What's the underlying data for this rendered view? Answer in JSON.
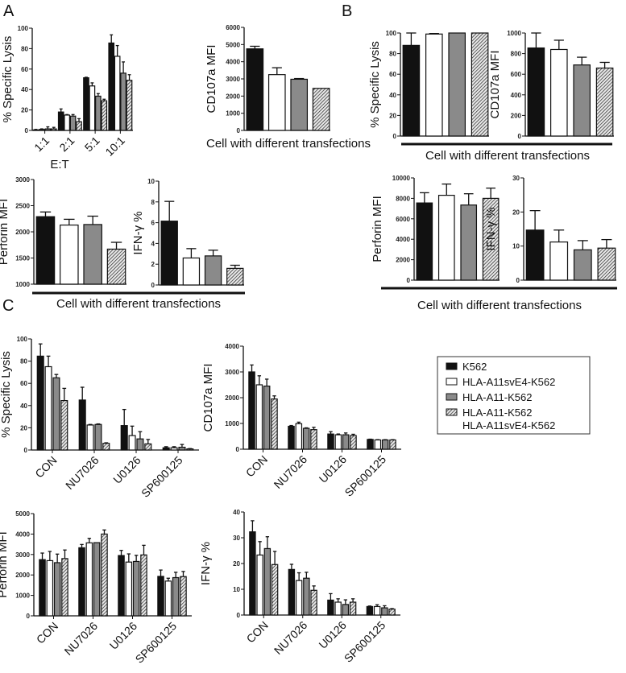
{
  "figure": {
    "panel_labels": {
      "a": "A",
      "b": "B",
      "c": "C"
    },
    "group_labels": {
      "a_top": "Cell with different transfections",
      "a_bottom": "Cell with different transfections",
      "b_top": "Cell with different transfections",
      "b_bottom": "Cell with different transfections"
    }
  },
  "legend": {
    "items": [
      {
        "line1": "K562",
        "line2": ""
      },
      {
        "line1": "HLA-A11svE4-K562",
        "line2": ""
      },
      {
        "line1": "HLA-A11-K562",
        "line2": ""
      },
      {
        "line1": "HLA-A11-K562",
        "line2": "HLA-A11svE4-K562"
      }
    ],
    "colors": [
      "#111111",
      "#ffffff",
      "#8a8a8a",
      "hatched"
    ]
  },
  "chart_data": [
    {
      "id": "A1",
      "type": "bar",
      "ylabel": "% Specific Lysis",
      "xlabel": "E:T",
      "ylim": [
        0,
        100
      ],
      "yticks": [
        0,
        20,
        40,
        60,
        80,
        100
      ],
      "categories": [
        "1:1",
        "2:1",
        "5:1",
        "10:1"
      ],
      "series": [
        {
          "name": "K562",
          "values": [
            0.5,
            18,
            51.5,
            85.5
          ],
          "errors": [
            0.5,
            3,
            0.5,
            8
          ]
        },
        {
          "name": "HLA-A11svE4-K562",
          "values": [
            1,
            15,
            43.5,
            72.5
          ],
          "errors": [
            0.5,
            0.5,
            3,
            10.5
          ]
        },
        {
          "name": "HLA-A11-K562",
          "values": [
            1.5,
            14,
            33.5,
            56
          ],
          "errors": [
            2,
            1.5,
            2.5,
            11
          ]
        },
        {
          "name": "HLA-A11-K562 + HLA-A11svE4-K562",
          "values": [
            1.5,
            8.5,
            29,
            49
          ],
          "errors": [
            1.5,
            3,
            1.5,
            5.5
          ]
        }
      ]
    },
    {
      "id": "A2",
      "type": "bar",
      "ylabel": "CD107a MFI",
      "xlabel": "",
      "ylim": [
        0,
        6000
      ],
      "yticks": [
        0,
        1000,
        2000,
        3000,
        4000,
        5000,
        6000
      ],
      "categories": [
        ""
      ],
      "series": [
        {
          "name": "K562",
          "values": [
            4750
          ],
          "errors": [
            150
          ]
        },
        {
          "name": "HLA-A11svE4-K562",
          "values": [
            3250
          ],
          "errors": [
            400
          ]
        },
        {
          "name": "HLA-A11-K562",
          "values": [
            2980
          ],
          "errors": [
            40
          ]
        },
        {
          "name": "HLA-A11-K562 + HLA-A11svE4-K562",
          "values": [
            2450
          ],
          "errors": [
            0
          ]
        }
      ]
    },
    {
      "id": "A3",
      "type": "bar",
      "ylabel": "Perforin MFI",
      "xlabel": "",
      "ylim": [
        1000,
        3000
      ],
      "yticks": [
        1000,
        1500,
        2000,
        2500,
        3000
      ],
      "categories": [
        ""
      ],
      "series": [
        {
          "name": "K562",
          "values": [
            2290
          ],
          "errors": [
            90
          ]
        },
        {
          "name": "HLA-A11svE4-K562",
          "values": [
            2130
          ],
          "errors": [
            110
          ]
        },
        {
          "name": "HLA-A11-K562",
          "values": [
            2140
          ],
          "errors": [
            160
          ]
        },
        {
          "name": "HLA-A11-K562 + HLA-A11svE4-K562",
          "values": [
            1670
          ],
          "errors": [
            130
          ]
        }
      ]
    },
    {
      "id": "A4",
      "type": "bar",
      "ylabel": "IFN-γ %",
      "xlabel": "",
      "ylim": [
        0,
        10
      ],
      "yticks": [
        0,
        2,
        4,
        6,
        8,
        10
      ],
      "categories": [
        ""
      ],
      "series": [
        {
          "name": "K562",
          "values": [
            6.15
          ],
          "errors": [
            1.9
          ]
        },
        {
          "name": "HLA-A11svE4-K562",
          "values": [
            2.6
          ],
          "errors": [
            0.9
          ]
        },
        {
          "name": "HLA-A11-K562",
          "values": [
            2.8
          ],
          "errors": [
            0.55
          ]
        },
        {
          "name": "HLA-A11-K562 + HLA-A11svE4-K562",
          "values": [
            1.6
          ],
          "errors": [
            0.3
          ]
        }
      ]
    },
    {
      "id": "B1",
      "type": "bar",
      "ylabel": "% Specific Lysis",
      "xlabel": "",
      "ylim": [
        0,
        100
      ],
      "yticks": [
        0,
        20,
        40,
        60,
        80,
        100
      ],
      "categories": [
        ""
      ],
      "series": [
        {
          "name": "K562",
          "values": [
            88
          ],
          "errors": [
            12
          ]
        },
        {
          "name": "HLA-A11svE4-K562",
          "values": [
            99
          ],
          "errors": [
            0.5
          ]
        },
        {
          "name": "HLA-A11-K562",
          "values": [
            100
          ],
          "errors": [
            0
          ]
        },
        {
          "name": "HLA-A11-K562 + HLA-A11svE4-K562",
          "values": [
            100
          ],
          "errors": [
            0
          ]
        }
      ]
    },
    {
      "id": "B2",
      "type": "bar",
      "ylabel": "CD107a MFI",
      "xlabel": "",
      "ylim": [
        0,
        1000
      ],
      "yticks": [
        0,
        200,
        400,
        600,
        800,
        1000
      ],
      "categories": [
        ""
      ],
      "series": [
        {
          "name": "K562",
          "values": [
            855
          ],
          "errors": [
            145
          ]
        },
        {
          "name": "HLA-A11svE4-K562",
          "values": [
            840
          ],
          "errors": [
            90
          ]
        },
        {
          "name": "HLA-A11-K562",
          "values": [
            690
          ],
          "errors": [
            75
          ]
        },
        {
          "name": "HLA-A11-K562 + HLA-A11svE4-K562",
          "values": [
            660
          ],
          "errors": [
            55
          ]
        }
      ]
    },
    {
      "id": "B3",
      "type": "bar",
      "ylabel": "Perforin MFI",
      "xlabel": "",
      "ylim": [
        0,
        10000
      ],
      "yticks": [
        0,
        2000,
        4000,
        6000,
        8000,
        10000
      ],
      "categories": [
        ""
      ],
      "series": [
        {
          "name": "K562",
          "values": [
            7550
          ],
          "errors": [
            1000
          ]
        },
        {
          "name": "HLA-A11svE4-K562",
          "values": [
            8300
          ],
          "errors": [
            1100
          ]
        },
        {
          "name": "HLA-A11-K562",
          "values": [
            7350
          ],
          "errors": [
            1100
          ]
        },
        {
          "name": "HLA-A11-K562 + HLA-A11svE4-K562",
          "values": [
            8000
          ],
          "errors": [
            1000
          ]
        }
      ]
    },
    {
      "id": "B4",
      "type": "bar",
      "ylabel": "IFN-γ %",
      "xlabel": "",
      "ylim": [
        0,
        30
      ],
      "yticks": [
        0,
        10,
        20,
        30
      ],
      "categories": [
        ""
      ],
      "series": [
        {
          "name": "K562",
          "values": [
            14.7
          ],
          "errors": [
            5.7
          ]
        },
        {
          "name": "HLA-A11svE4-K562",
          "values": [
            11.2
          ],
          "errors": [
            3.5
          ]
        },
        {
          "name": "HLA-A11-K562",
          "values": [
            8.9
          ],
          "errors": [
            2.7
          ]
        },
        {
          "name": "HLA-A11-K562 + HLA-A11svE4-K562",
          "values": [
            9.4
          ],
          "errors": [
            2.5
          ]
        }
      ]
    },
    {
      "id": "C1",
      "type": "bar",
      "ylabel": "% Specific Lysis",
      "xlabel": "",
      "ylim": [
        0,
        100
      ],
      "yticks": [
        0,
        20,
        40,
        60,
        80,
        100
      ],
      "categories": [
        "CON",
        "NU7026",
        "U0126",
        "SP600125"
      ],
      "series": [
        {
          "name": "K562",
          "values": [
            84.5,
            45,
            22,
            2
          ],
          "errors": [
            11,
            11.5,
            14.5,
            1
          ]
        },
        {
          "name": "HLA-A11svE4-K562",
          "values": [
            75,
            22.5,
            13,
            2
          ],
          "errors": [
            9.5,
            0.5,
            8.5,
            1
          ]
        },
        {
          "name": "HLA-A11-K562",
          "values": [
            65,
            23,
            10,
            2.5
          ],
          "errors": [
            3,
            0.5,
            6.5,
            2.5
          ]
        },
        {
          "name": "HLA-A11-K562 + HLA-A11svE4-K562",
          "values": [
            44.5,
            6,
            5.5,
            1
          ],
          "errors": [
            11,
            0.5,
            4,
            0.3
          ]
        }
      ]
    },
    {
      "id": "C2",
      "type": "bar",
      "ylabel": "CD107a MFI",
      "xlabel": "",
      "ylim": [
        0,
        4000
      ],
      "yticks": [
        0,
        1000,
        2000,
        3000,
        4000
      ],
      "categories": [
        "CON",
        "NU7026",
        "U0126",
        "SP600125"
      ],
      "series": [
        {
          "name": "K562",
          "values": [
            3000,
            890,
            590,
            380
          ],
          "errors": [
            270,
            30,
            90,
            10
          ]
        },
        {
          "name": "HLA-A11svE4-K562",
          "values": [
            2500,
            990,
            560,
            360
          ],
          "errors": [
            350,
            60,
            30,
            10
          ]
        },
        {
          "name": "HLA-A11-K562",
          "values": [
            2450,
            810,
            560,
            360
          ],
          "errors": [
            270,
            20,
            70,
            10
          ]
        },
        {
          "name": "HLA-A11-K562 + HLA-A11svE4-K562",
          "values": [
            1950,
            760,
            530,
            360
          ],
          "errors": [
            120,
            90,
            50,
            10
          ]
        }
      ]
    },
    {
      "id": "C3",
      "type": "bar",
      "ylabel": "Perforin MFI",
      "xlabel": "",
      "ylim": [
        0,
        5000
      ],
      "yticks": [
        0,
        1000,
        2000,
        3000,
        4000,
        5000
      ],
      "categories": [
        "CON",
        "NU7026",
        "U0126",
        "SP600125"
      ],
      "series": [
        {
          "name": "K562",
          "values": [
            2750,
            3330,
            2950,
            1930
          ],
          "errors": [
            320,
            160,
            250,
            310
          ]
        },
        {
          "name": "HLA-A11svE4-K562",
          "values": [
            2700,
            3570,
            2630,
            1700
          ],
          "errors": [
            450,
            220,
            400,
            140
          ]
        },
        {
          "name": "HLA-A11-K562",
          "values": [
            2600,
            3580,
            2660,
            1870
          ],
          "errors": [
            420,
            0,
            300,
            260
          ]
        },
        {
          "name": "HLA-A11-K562 + HLA-A11svE4-K562",
          "values": [
            2800,
            4000,
            2980,
            1920
          ],
          "errors": [
            420,
            200,
            470,
            250
          ]
        }
      ]
    },
    {
      "id": "C4",
      "type": "bar",
      "ylabel": "IFN-γ %",
      "xlabel": "",
      "ylim": [
        0,
        40
      ],
      "yticks": [
        0,
        10,
        20,
        30,
        40
      ],
      "categories": [
        "CON",
        "NU7026",
        "U0126",
        "SP600125"
      ],
      "series": [
        {
          "name": "K562",
          "values": [
            32.3,
            17.7,
            5.8,
            3.3
          ],
          "errors": [
            4.3,
            2,
            2.5,
            0.2
          ]
        },
        {
          "name": "HLA-A11svE4-K562",
          "values": [
            23.3,
            13.4,
            5,
            3.3
          ],
          "errors": [
            5.2,
            3,
            1.3,
            0.7
          ]
        },
        {
          "name": "HLA-A11-K562",
          "values": [
            25.8,
            14.3,
            4.1,
            2.8
          ],
          "errors": [
            4.6,
            2.3,
            1.8,
            0.8
          ]
        },
        {
          "name": "HLA-A11-K562 + HLA-A11svE4-K562",
          "values": [
            19.6,
            9.6,
            5,
            2.3
          ],
          "errors": [
            5.1,
            1.7,
            1.3,
            0.2
          ]
        }
      ]
    }
  ]
}
